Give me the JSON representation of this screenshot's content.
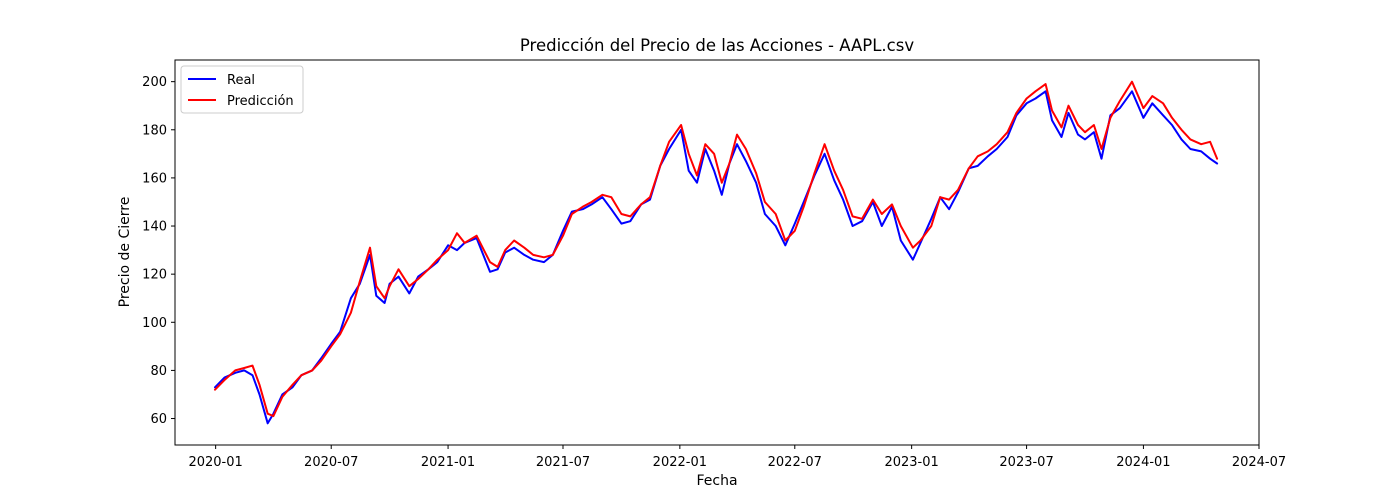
{
  "chart_data": {
    "type": "line",
    "title": "Predicción del Precio de las Acciones - AAPL.csv",
    "xlabel": "Fecha",
    "ylabel": "Precio de Cierre",
    "x_range": [
      "2019-10-29",
      "2024-07-01"
    ],
    "ylim": [
      49,
      209
    ],
    "x_ticks": [
      "2020-01",
      "2020-07",
      "2021-01",
      "2021-07",
      "2022-01",
      "2022-07",
      "2023-01",
      "2023-07",
      "2024-01",
      "2024-07"
    ],
    "y_ticks": [
      60,
      80,
      100,
      120,
      140,
      160,
      180,
      200
    ],
    "grid": false,
    "legend_position": "upper-left",
    "colors": {
      "real": "#0000ff",
      "prediccion": "#ff0000"
    },
    "x": [
      "2019-12-31",
      "2020-01-15",
      "2020-02-01",
      "2020-02-15",
      "2020-02-28",
      "2020-03-10",
      "2020-03-23",
      "2020-04-01",
      "2020-04-15",
      "2020-05-01",
      "2020-05-15",
      "2020-06-01",
      "2020-06-15",
      "2020-07-01",
      "2020-07-15",
      "2020-08-01",
      "2020-08-15",
      "2020-08-31",
      "2020-09-10",
      "2020-09-23",
      "2020-10-01",
      "2020-10-15",
      "2020-11-01",
      "2020-11-15",
      "2020-12-01",
      "2020-12-15",
      "2021-01-01",
      "2021-01-15",
      "2021-01-27",
      "2021-02-15",
      "2021-03-08",
      "2021-03-20",
      "2021-04-01",
      "2021-04-15",
      "2021-05-01",
      "2021-05-15",
      "2021-06-01",
      "2021-06-15",
      "2021-07-01",
      "2021-07-15",
      "2021-08-01",
      "2021-08-15",
      "2021-09-01",
      "2021-09-15",
      "2021-10-01",
      "2021-10-15",
      "2021-11-01",
      "2021-11-15",
      "2021-12-01",
      "2021-12-15",
      "2022-01-03",
      "2022-01-15",
      "2022-01-28",
      "2022-02-10",
      "2022-02-24",
      "2022-03-08",
      "2022-03-20",
      "2022-04-01",
      "2022-04-15",
      "2022-05-01",
      "2022-05-15",
      "2022-06-01",
      "2022-06-16",
      "2022-07-01",
      "2022-07-15",
      "2022-08-01",
      "2022-08-17",
      "2022-09-01",
      "2022-09-15",
      "2022-09-30",
      "2022-10-15",
      "2022-11-01",
      "2022-11-15",
      "2022-12-01",
      "2022-12-15",
      "2023-01-03",
      "2023-01-15",
      "2023-02-01",
      "2023-02-15",
      "2023-03-01",
      "2023-03-15",
      "2023-04-01",
      "2023-04-15",
      "2023-05-01",
      "2023-05-15",
      "2023-06-01",
      "2023-06-15",
      "2023-07-01",
      "2023-07-15",
      "2023-07-31",
      "2023-08-10",
      "2023-08-25",
      "2023-09-05",
      "2023-09-20",
      "2023-10-01",
      "2023-10-15",
      "2023-10-27",
      "2023-11-10",
      "2023-11-25",
      "2023-12-14",
      "2024-01-01",
      "2024-01-15",
      "2024-02-01",
      "2024-02-15",
      "2024-03-01",
      "2024-03-15",
      "2024-04-01",
      "2024-04-15",
      "2024-04-26"
    ],
    "series": [
      {
        "name": "Real",
        "color": "#0000ff",
        "values": [
          73,
          77,
          79,
          80,
          78,
          70,
          58,
          62,
          70,
          73,
          78,
          80,
          85,
          91,
          96,
          110,
          116,
          128,
          111,
          108,
          116,
          119,
          112,
          119,
          122,
          125,
          132,
          130,
          133,
          135,
          121,
          122,
          129,
          131,
          128,
          126,
          125,
          128,
          138,
          146,
          147,
          149,
          152,
          147,
          141,
          142,
          149,
          151,
          165,
          172,
          180,
          163,
          158,
          172,
          163,
          153,
          166,
          174,
          167,
          158,
          145,
          140,
          132,
          141,
          150,
          161,
          170,
          159,
          151,
          140,
          142,
          150,
          140,
          148,
          134,
          126,
          133,
          143,
          152,
          147,
          154,
          164,
          165,
          169,
          172,
          177,
          186,
          191,
          193,
          196,
          184,
          177,
          187,
          178,
          176,
          179,
          168,
          186,
          189,
          196,
          185,
          191,
          186,
          182,
          176,
          172,
          171,
          168,
          166
        ]
      },
      {
        "name": "Predicción",
        "color": "#ff0000",
        "values": [
          72,
          76,
          80,
          81,
          82,
          74,
          62,
          61,
          69,
          74,
          78,
          80,
          84,
          90,
          95,
          104,
          117,
          131,
          115,
          110,
          115,
          122,
          115,
          118,
          122,
          126,
          130,
          137,
          133,
          136,
          125,
          123,
          130,
          134,
          131,
          128,
          127,
          128,
          136,
          145,
          148,
          150,
          153,
          152,
          145,
          144,
          149,
          152,
          165,
          175,
          182,
          170,
          161,
          174,
          170,
          158,
          166,
          178,
          172,
          162,
          150,
          145,
          134,
          138,
          148,
          162,
          174,
          163,
          155,
          144,
          143,
          151,
          145,
          149,
          140,
          131,
          134,
          140,
          152,
          151,
          155,
          164,
          169,
          171,
          174,
          179,
          187,
          193,
          196,
          199,
          188,
          181,
          190,
          182,
          179,
          182,
          172,
          185,
          192,
          200,
          189,
          194,
          191,
          185,
          180,
          176,
          174,
          175,
          168
        ]
      }
    ]
  }
}
